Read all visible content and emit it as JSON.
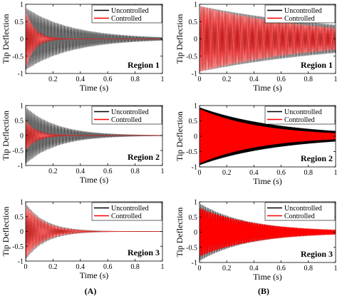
{
  "chart_data": [
    {
      "type": "line",
      "column": "A",
      "region": "Region 1",
      "xlabel": "Time (s)",
      "ylabel": "Tip Deflection",
      "xlim": [
        0,
        1
      ],
      "ylim": [
        -1,
        1
      ],
      "xticks": [
        0.2,
        0.4,
        0.6,
        0.8,
        1
      ],
      "xtick_labels": [
        "0.2",
        "0.4",
        "0.6",
        "0.8",
        "1"
      ],
      "yticks": [
        -1,
        -0.5,
        0,
        0.5,
        1
      ],
      "ytick_labels": [
        "-1",
        "-0.5",
        "0",
        "0.5",
        "1"
      ],
      "legend": "top-right",
      "series": [
        {
          "name": "Uncontrolled",
          "color": "#000000",
          "amplitude": 0.9,
          "decay_rate": 3.0,
          "frequency_hz": 95
        },
        {
          "name": "Controlled",
          "color": "#ff0000",
          "amplitude": 0.85,
          "decay_rate": 15.0,
          "frequency_hz": 95
        }
      ]
    },
    {
      "type": "line",
      "column": "B",
      "region": "Region 1",
      "xlabel": "Time (s)",
      "ylabel": "Tip Deflection",
      "xlim": [
        0,
        1
      ],
      "ylim": [
        -1,
        1
      ],
      "xticks": [
        0,
        0.2,
        0.4,
        0.6,
        0.8,
        1
      ],
      "xtick_labels": [
        "0",
        "0.2",
        "0.4",
        "0.6",
        "0.8",
        "1"
      ],
      "yticks": [
        -1,
        -0.5,
        0,
        0.5,
        1
      ],
      "ytick_labels": [
        "-1",
        "-0.5",
        "0",
        "0.5",
        "1"
      ],
      "legend": "top-right",
      "series": [
        {
          "name": "Uncontrolled",
          "color": "#000000",
          "amplitude": 0.95,
          "decay_rate": 0.85,
          "frequency_hz": 100
        },
        {
          "name": "Controlled",
          "color": "#ff0000",
          "amplitude": 0.95,
          "decay_rate": 1.1,
          "frequency_hz": 100
        }
      ]
    },
    {
      "type": "line",
      "column": "A",
      "region": "Region 2",
      "xlabel": "Time (s)",
      "ylabel": "Tip Deflection",
      "xlim": [
        0,
        1
      ],
      "ylim": [
        -1,
        1
      ],
      "xticks": [
        0.2,
        0.4,
        0.6,
        0.8,
        1
      ],
      "xtick_labels": [
        "0.2",
        "0.4",
        "0.6",
        "0.8",
        "1"
      ],
      "yticks": [
        -1,
        -0.5,
        0,
        0.5,
        1
      ],
      "ytick_labels": [
        "-1",
        "-0.5",
        "0",
        "0.5",
        "1"
      ],
      "legend": "top-right",
      "series": [
        {
          "name": "Uncontrolled",
          "color": "#000000",
          "amplitude": 0.95,
          "decay_rate": 4.5,
          "frequency_hz": 95
        },
        {
          "name": "Controlled",
          "color": "#ff0000",
          "amplitude": 0.5,
          "decay_rate": 12.0,
          "frequency_hz": 95
        }
      ]
    },
    {
      "type": "line",
      "column": "B",
      "region": "Region 2",
      "xlabel": "Time (s)",
      "ylabel": "Tip Deflection",
      "xlim": [
        0,
        1
      ],
      "ylim": [
        -1,
        1
      ],
      "xticks": [
        0,
        0.2,
        0.4,
        0.6,
        0.8,
        1
      ],
      "xtick_labels": [
        "0",
        "0.2",
        "0.4",
        "0.6",
        "0.8",
        "1"
      ],
      "yticks": [
        -1,
        -0.5,
        0,
        0.5,
        1
      ],
      "ytick_labels": [
        "-1",
        "-0.5",
        "0",
        "0.5",
        "1"
      ],
      "legend": "top-right",
      "series": [
        {
          "name": "Uncontrolled",
          "color": "#000000",
          "amplitude": 0.95,
          "decay_rate": 1.7,
          "frequency_hz": 300
        },
        {
          "name": "Controlled",
          "color": "#ff0000",
          "amplitude": 0.9,
          "decay_rate": 2.2,
          "frequency_hz": 300
        }
      ]
    },
    {
      "type": "line",
      "column": "A",
      "region": "Region 3",
      "xlabel": "Time (s)",
      "ylabel": "Tip Deflection",
      "xlim": [
        0,
        1
      ],
      "ylim": [
        -1,
        1
      ],
      "xticks": [
        0,
        0.2,
        0.4,
        0.6,
        0.8,
        1
      ],
      "xtick_labels": [
        "0",
        "0.2",
        "0.4",
        "0.6",
        "0.8",
        "1"
      ],
      "yticks": [
        -1,
        -0.5,
        0,
        0.5,
        1
      ],
      "ytick_labels": [
        "-1",
        "-0.5",
        "0",
        "0.5",
        "1"
      ],
      "legend": "top-right",
      "series": [
        {
          "name": "Uncontrolled",
          "color": "#000000",
          "amplitude": 0.95,
          "decay_rate": 7.0,
          "frequency_hz": 95
        },
        {
          "name": "Controlled",
          "color": "#ff0000",
          "amplitude": 0.9,
          "decay_rate": 7.5,
          "frequency_hz": 95
        }
      ]
    },
    {
      "type": "line",
      "column": "B",
      "region": "Region 3",
      "xlabel": "Time (s)",
      "ylabel": "Tip Deflection",
      "xlim": [
        0,
        1
      ],
      "ylim": [
        -1,
        1
      ],
      "xticks": [
        0,
        0.2,
        0.4,
        0.6,
        0.8,
        1
      ],
      "xtick_labels": [
        "0",
        "0.2",
        "0.4",
        "0.6",
        "0.8",
        "1"
      ],
      "yticks": [
        -1,
        -0.5,
        0,
        0.5,
        1
      ],
      "ytick_labels": [
        "-1",
        "-0.5",
        "0",
        "0.5",
        "1"
      ],
      "legend": "top-right",
      "series": [
        {
          "name": "Uncontrolled",
          "color": "#000000",
          "amplitude": 0.95,
          "decay_rate": 2.8,
          "frequency_hz": 110
        },
        {
          "name": "Controlled",
          "color": "#ff0000",
          "amplitude": 0.8,
          "decay_rate": 2.4,
          "frequency_hz": 220
        }
      ]
    }
  ],
  "column_labels": [
    "(A)",
    "(B)"
  ]
}
